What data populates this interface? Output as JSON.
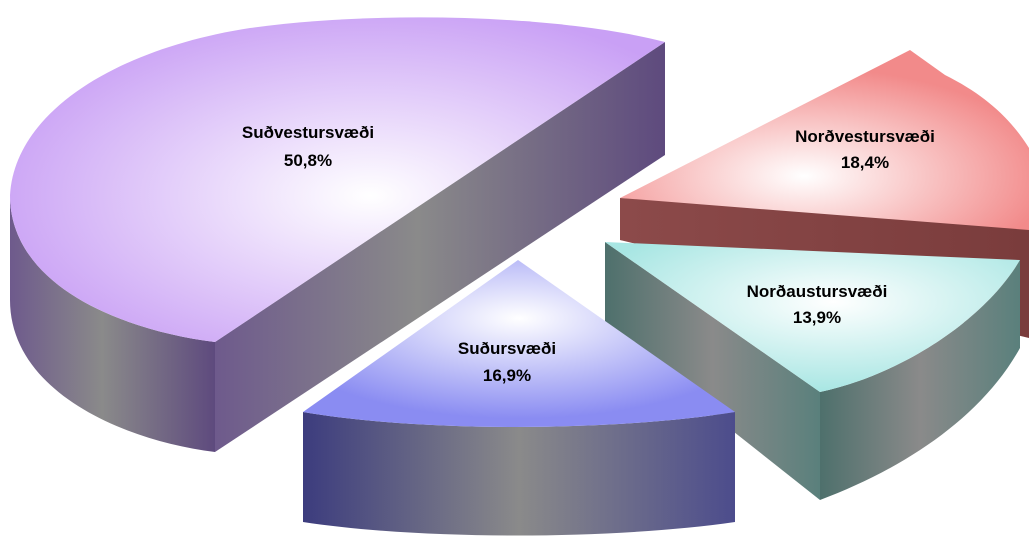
{
  "chart_data": {
    "type": "pie",
    "style": "3d-exploded",
    "title": "",
    "legend": "none",
    "slices": [
      {
        "label": "Suðvestursvæði",
        "value": 50.8,
        "value_label": "50,8%",
        "color": "#c9a0f5",
        "side_color": "#6e5a8c"
      },
      {
        "label": "Norðvestursvæði",
        "value": 18.4,
        "value_label": "18,4%",
        "color": "#f28a8a",
        "side_color": "#8c4a4a"
      },
      {
        "label": "Norðaustursvæði",
        "value": 13.9,
        "value_label": "13,9%",
        "color": "#a8e6e3",
        "side_color": "#5a807c"
      },
      {
        "label": "Suðursvæði",
        "value": 16.9,
        "value_label": "16,9%",
        "color": "#8a8cf2",
        "side_color": "#4c4c8c"
      }
    ]
  }
}
